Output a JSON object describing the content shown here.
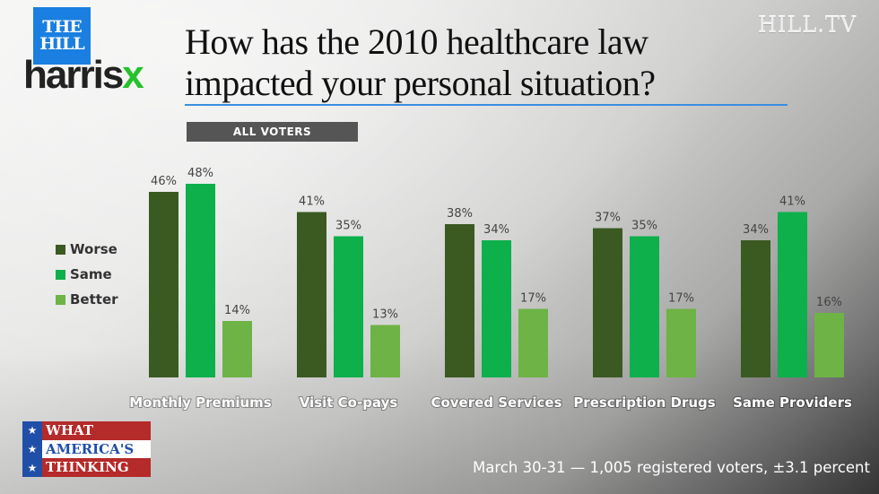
{
  "branding": {
    "hill_logo_line1": "THE",
    "hill_logo_line2": "HILL",
    "harris_logo_main": "harris",
    "harris_logo_x": "x",
    "hilltv": "HILL.TV",
    "wat_line1": "WHAT",
    "wat_line2": "AMERICA'S",
    "wat_line3": "THINKING",
    "star": "★"
  },
  "badge": "ALL VOTERS",
  "footer": "March 30-31 — 1,005 registered voters, ±3.1 percent",
  "colors": {
    "worse": "#3b5a22",
    "same": "#0db04b",
    "better": "#6db345",
    "accent_blue": "#1a7fe0"
  },
  "chart_data": {
    "type": "bar",
    "title": "How has the 2010 healthcare law impacted your personal situation?",
    "title_line1": "How has the 2010 healthcare law",
    "title_line2": "impacted your personal situation?",
    "subtitle": "ALL VOTERS",
    "xlabel": "",
    "ylabel": "",
    "ylim": [
      0,
      50
    ],
    "grid": false,
    "legend_position": "left",
    "categories": [
      "Monthly Premiums",
      "Visit Co-pays",
      "Covered Services",
      "Prescription Drugs",
      "Same Providers"
    ],
    "series": [
      {
        "name": "Worse",
        "color": "#3b5a22",
        "values": [
          46,
          41,
          38,
          37,
          34
        ]
      },
      {
        "name": "Same",
        "color": "#0db04b",
        "values": [
          48,
          35,
          34,
          35,
          41
        ]
      },
      {
        "name": "Better",
        "color": "#6db345",
        "values": [
          14,
          13,
          17,
          17,
          16
        ]
      }
    ],
    "value_suffix": "%"
  }
}
